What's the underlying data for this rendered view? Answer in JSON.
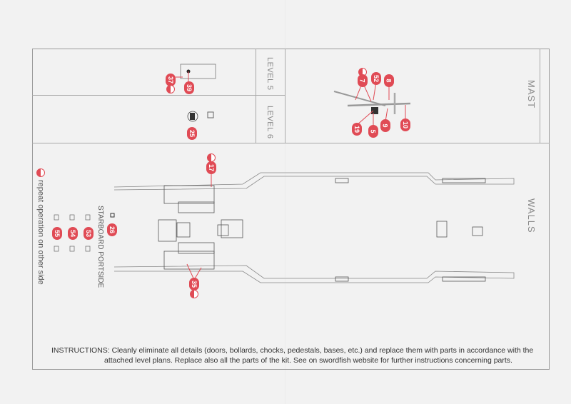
{
  "sections": {
    "level5": "LEVEL 5",
    "level6": "LEVEL 6",
    "mast": "MAST",
    "walls": "WALLS"
  },
  "callouts": {
    "level5": [
      "37",
      "39"
    ],
    "level6": [
      "25"
    ],
    "mast": [
      "7",
      "52",
      "8",
      "19",
      "5",
      "9",
      "10"
    ],
    "walls": [
      "17",
      "35",
      "26",
      "53",
      "54",
      "55"
    ]
  },
  "legend": {
    "columns": "STARBOARD   PORTSIDE",
    "repeat_note": "repeat operation on other side"
  },
  "instructions": {
    "line1": "INSTRUCTIONS: Cleanly eliminate all details (doors, bollards, chocks, pedestals, bases, etc.) and replace them with parts in accordance with the",
    "line2": "attached level plans. Replace also all the parts of the kit. See on swordfish website for further instructions concerning parts."
  },
  "colors": {
    "callout": "#e04b55",
    "paper": "#f2f2f2",
    "lines": "#9a9a9a"
  }
}
